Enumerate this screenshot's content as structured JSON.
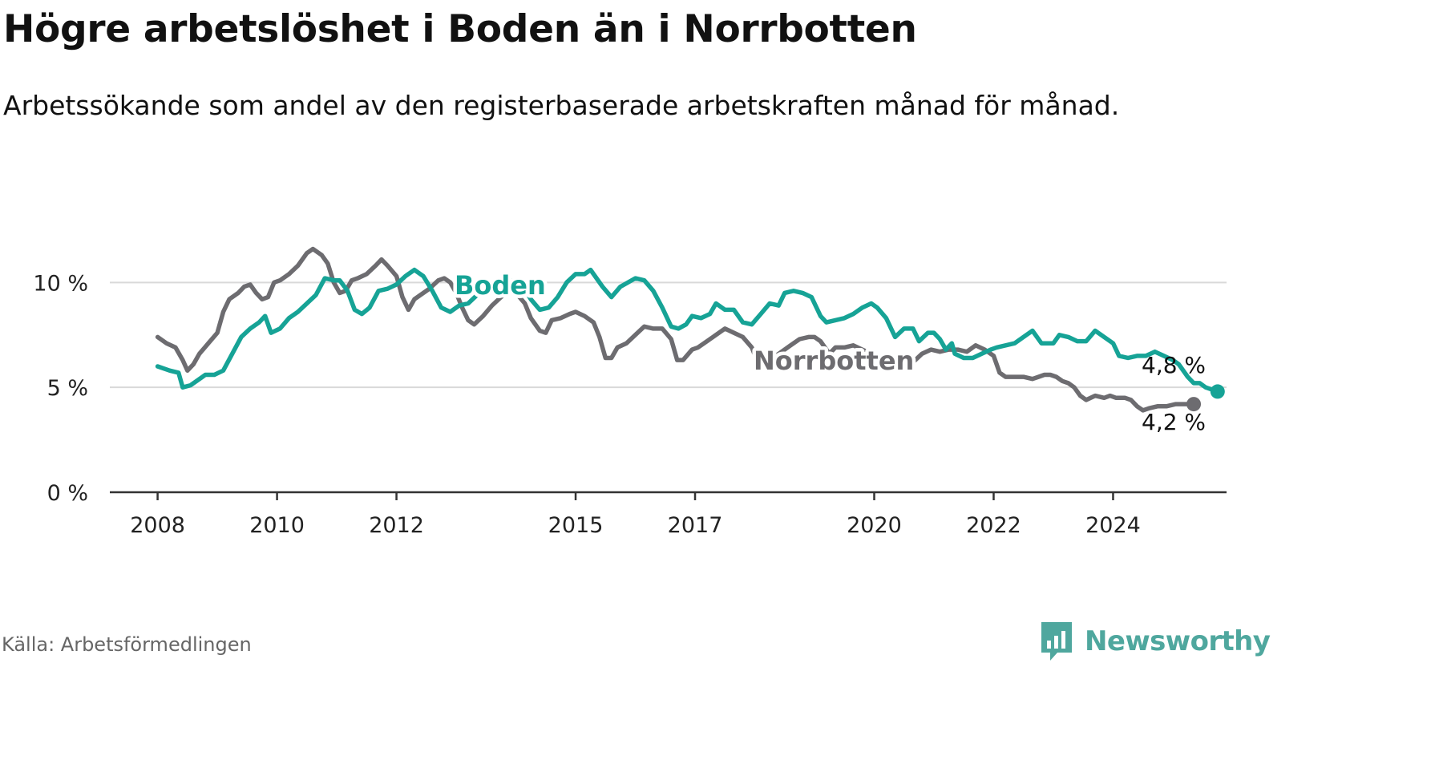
{
  "title": "Högre arbetslöshet i Boden än i Norrbotten",
  "subtitle": "Arbetssökande som andel av den registerbaserade arbetskraften månad för månad.",
  "source": "Källa: Arbetsförmedlingen",
  "brand": {
    "name": "Newsworthy",
    "icon": "newsworthy-logo-icon",
    "color": "#4fa79e"
  },
  "colors": {
    "boden": "#16a396",
    "norrbotten": "#6d6c70",
    "grid": "#d9d9d9",
    "axis": "#333333"
  },
  "chart_data": {
    "type": "line",
    "title": "Högre arbetslöshet i Boden än i Norrbotten",
    "xlabel": "",
    "ylabel": "",
    "ylim": [
      0,
      12
    ],
    "xlim": [
      2007.2,
      2025.9
    ],
    "y_ticks": [
      0,
      5,
      10
    ],
    "y_tick_labels": [
      "0 %",
      "5 %",
      "10 %"
    ],
    "x_ticks": [
      2008,
      2010,
      2012,
      2015,
      2017,
      2020,
      2022,
      2024
    ],
    "x_tick_labels": [
      "2008",
      "2010",
      "2012",
      "2015",
      "2017",
      "2020",
      "2022",
      "2024"
    ],
    "grid": true,
    "series": [
      {
        "name": "Boden",
        "label": "Boden",
        "color": "#16a396",
        "end_label": "4,8 %",
        "points": [
          [
            2008.0,
            6.0
          ],
          [
            2008.2,
            5.8
          ],
          [
            2008.35,
            5.7
          ],
          [
            2008.42,
            5.0
          ],
          [
            2008.55,
            5.1
          ],
          [
            2008.8,
            5.6
          ],
          [
            2008.95,
            5.6
          ],
          [
            2009.1,
            5.8
          ],
          [
            2009.25,
            6.6
          ],
          [
            2009.4,
            7.4
          ],
          [
            2009.55,
            7.8
          ],
          [
            2009.7,
            8.1
          ],
          [
            2009.8,
            8.4
          ],
          [
            2009.9,
            7.6
          ],
          [
            2010.05,
            7.8
          ],
          [
            2010.2,
            8.3
          ],
          [
            2010.35,
            8.6
          ],
          [
            2010.5,
            9.0
          ],
          [
            2010.65,
            9.4
          ],
          [
            2010.8,
            10.2
          ],
          [
            2010.95,
            10.1
          ],
          [
            2011.05,
            10.1
          ],
          [
            2011.18,
            9.6
          ],
          [
            2011.3,
            8.7
          ],
          [
            2011.42,
            8.5
          ],
          [
            2011.55,
            8.8
          ],
          [
            2011.7,
            9.6
          ],
          [
            2011.85,
            9.7
          ],
          [
            2012.0,
            9.9
          ],
          [
            2012.15,
            10.3
          ],
          [
            2012.3,
            10.6
          ],
          [
            2012.45,
            10.3
          ],
          [
            2012.6,
            9.6
          ],
          [
            2012.75,
            8.8
          ],
          [
            2012.9,
            8.6
          ],
          [
            2013.05,
            8.9
          ],
          [
            2013.2,
            9.0
          ],
          [
            2013.35,
            9.4
          ],
          [
            2013.5,
            9.6
          ],
          [
            2013.65,
            9.8
          ],
          [
            2013.8,
            10.0
          ],
          [
            2013.95,
            10.1
          ],
          [
            2014.1,
            9.9
          ],
          [
            2014.25,
            9.2
          ],
          [
            2014.4,
            8.7
          ],
          [
            2014.55,
            8.8
          ],
          [
            2014.7,
            9.3
          ],
          [
            2014.85,
            10.0
          ],
          [
            2015.0,
            10.4
          ],
          [
            2015.15,
            10.4
          ],
          [
            2015.25,
            10.6
          ],
          [
            2015.45,
            9.8
          ],
          [
            2015.6,
            9.3
          ],
          [
            2015.75,
            9.8
          ],
          [
            2016.0,
            10.2
          ],
          [
            2016.15,
            10.1
          ],
          [
            2016.3,
            9.6
          ],
          [
            2016.45,
            8.8
          ],
          [
            2016.6,
            7.9
          ],
          [
            2016.72,
            7.8
          ],
          [
            2016.85,
            8.0
          ],
          [
            2016.95,
            8.4
          ],
          [
            2017.1,
            8.3
          ],
          [
            2017.25,
            8.5
          ],
          [
            2017.35,
            9.0
          ],
          [
            2017.5,
            8.7
          ],
          [
            2017.65,
            8.7
          ],
          [
            2017.8,
            8.1
          ],
          [
            2017.95,
            8.0
          ],
          [
            2018.1,
            8.5
          ],
          [
            2018.25,
            9.0
          ],
          [
            2018.4,
            8.9
          ],
          [
            2018.5,
            9.5
          ],
          [
            2018.65,
            9.6
          ],
          [
            2018.8,
            9.5
          ],
          [
            2018.95,
            9.3
          ],
          [
            2019.1,
            8.4
          ],
          [
            2019.2,
            8.1
          ],
          [
            2019.35,
            8.2
          ],
          [
            2019.5,
            8.3
          ],
          [
            2019.65,
            8.5
          ],
          [
            2019.8,
            8.8
          ],
          [
            2019.95,
            9.0
          ],
          [
            2020.05,
            8.8
          ],
          [
            2020.2,
            8.3
          ],
          [
            2020.35,
            7.4
          ],
          [
            2020.5,
            7.8
          ],
          [
            2020.65,
            7.8
          ],
          [
            2020.75,
            7.2
          ],
          [
            2020.9,
            7.6
          ],
          [
            2021.0,
            7.6
          ],
          [
            2021.1,
            7.3
          ],
          [
            2021.2,
            6.8
          ],
          [
            2021.3,
            7.1
          ],
          [
            2021.35,
            6.6
          ],
          [
            2021.5,
            6.4
          ],
          [
            2021.65,
            6.4
          ],
          [
            2021.8,
            6.6
          ],
          [
            2021.95,
            6.8
          ],
          [
            2022.05,
            6.9
          ],
          [
            2022.2,
            7.0
          ],
          [
            2022.35,
            7.1
          ],
          [
            2022.5,
            7.4
          ],
          [
            2022.65,
            7.7
          ],
          [
            2022.8,
            7.1
          ],
          [
            2022.95,
            7.1
          ],
          [
            2023.0,
            7.1
          ],
          [
            2023.1,
            7.5
          ],
          [
            2023.25,
            7.4
          ],
          [
            2023.4,
            7.2
          ],
          [
            2023.55,
            7.2
          ],
          [
            2023.7,
            7.7
          ],
          [
            2023.85,
            7.4
          ],
          [
            2024.0,
            7.1
          ],
          [
            2024.1,
            6.5
          ],
          [
            2024.25,
            6.4
          ],
          [
            2024.4,
            6.5
          ],
          [
            2024.55,
            6.5
          ],
          [
            2024.7,
            6.7
          ],
          [
            2024.85,
            6.5
          ],
          [
            2025.0,
            6.3
          ],
          [
            2025.1,
            6.1
          ],
          [
            2025.25,
            5.5
          ],
          [
            2025.35,
            5.2
          ],
          [
            2025.45,
            5.2
          ],
          [
            2025.55,
            5.0
          ],
          [
            2025.65,
            4.9
          ],
          [
            2025.75,
            4.8
          ]
        ]
      },
      {
        "name": "Norrbotten",
        "label": "Norrbotten",
        "color": "#6d6c70",
        "end_label": "4,2 %",
        "points": [
          [
            2008.0,
            7.4
          ],
          [
            2008.15,
            7.1
          ],
          [
            2008.3,
            6.9
          ],
          [
            2008.42,
            6.3
          ],
          [
            2008.5,
            5.8
          ],
          [
            2008.6,
            6.1
          ],
          [
            2008.7,
            6.6
          ],
          [
            2008.85,
            7.1
          ],
          [
            2009.0,
            7.6
          ],
          [
            2009.1,
            8.6
          ],
          [
            2009.2,
            9.2
          ],
          [
            2009.35,
            9.5
          ],
          [
            2009.45,
            9.8
          ],
          [
            2009.55,
            9.9
          ],
          [
            2009.65,
            9.5
          ],
          [
            2009.75,
            9.2
          ],
          [
            2009.85,
            9.3
          ],
          [
            2009.95,
            10.0
          ],
          [
            2010.05,
            10.1
          ],
          [
            2010.2,
            10.4
          ],
          [
            2010.35,
            10.8
          ],
          [
            2010.5,
            11.4
          ],
          [
            2010.6,
            11.6
          ],
          [
            2010.75,
            11.3
          ],
          [
            2010.85,
            10.9
          ],
          [
            2010.95,
            10.0
          ],
          [
            2011.05,
            9.5
          ],
          [
            2011.15,
            9.6
          ],
          [
            2011.25,
            10.1
          ],
          [
            2011.35,
            10.2
          ],
          [
            2011.5,
            10.4
          ],
          [
            2011.65,
            10.8
          ],
          [
            2011.75,
            11.1
          ],
          [
            2011.85,
            10.8
          ],
          [
            2012.0,
            10.3
          ],
          [
            2012.1,
            9.3
          ],
          [
            2012.2,
            8.7
          ],
          [
            2012.3,
            9.2
          ],
          [
            2012.4,
            9.4
          ],
          [
            2012.55,
            9.7
          ],
          [
            2012.7,
            10.1
          ],
          [
            2012.8,
            10.2
          ],
          [
            2012.9,
            10.0
          ],
          [
            2013.0,
            9.5
          ],
          [
            2013.1,
            8.8
          ],
          [
            2013.2,
            8.2
          ],
          [
            2013.3,
            8.0
          ],
          [
            2013.45,
            8.4
          ],
          [
            2013.6,
            8.9
          ],
          [
            2013.75,
            9.3
          ],
          [
            2013.85,
            9.5
          ],
          [
            2014.0,
            9.5
          ],
          [
            2014.15,
            9.0
          ],
          [
            2014.25,
            8.3
          ],
          [
            2014.4,
            7.7
          ],
          [
            2014.5,
            7.6
          ],
          [
            2014.6,
            8.2
          ],
          [
            2014.75,
            8.3
          ],
          [
            2014.9,
            8.5
          ],
          [
            2015.0,
            8.6
          ],
          [
            2015.15,
            8.4
          ],
          [
            2015.3,
            8.1
          ],
          [
            2015.4,
            7.4
          ],
          [
            2015.5,
            6.4
          ],
          [
            2015.6,
            6.4
          ],
          [
            2015.7,
            6.9
          ],
          [
            2015.85,
            7.1
          ],
          [
            2016.0,
            7.5
          ],
          [
            2016.15,
            7.9
          ],
          [
            2016.3,
            7.8
          ],
          [
            2016.45,
            7.8
          ],
          [
            2016.6,
            7.3
          ],
          [
            2016.7,
            6.3
          ],
          [
            2016.8,
            6.3
          ],
          [
            2016.95,
            6.8
          ],
          [
            2017.05,
            6.9
          ],
          [
            2017.2,
            7.2
          ],
          [
            2017.35,
            7.5
          ],
          [
            2017.5,
            7.8
          ],
          [
            2017.65,
            7.6
          ],
          [
            2017.8,
            7.4
          ],
          [
            2017.95,
            6.9
          ],
          [
            2018.05,
            6.2
          ],
          [
            2018.15,
            6.1
          ],
          [
            2018.3,
            6.4
          ],
          [
            2018.45,
            6.7
          ],
          [
            2018.6,
            7.0
          ],
          [
            2018.75,
            7.3
          ],
          [
            2018.9,
            7.4
          ],
          [
            2019.0,
            7.4
          ],
          [
            2019.1,
            7.2
          ],
          [
            2019.25,
            6.6
          ],
          [
            2019.35,
            6.9
          ],
          [
            2019.5,
            6.9
          ],
          [
            2019.65,
            7.0
          ],
          [
            2019.8,
            6.8
          ],
          [
            2019.95,
            6.6
          ],
          [
            2020.05,
            6.4
          ],
          [
            2020.2,
            6.3
          ],
          [
            2020.35,
            6.2
          ],
          [
            2020.5,
            6.1
          ],
          [
            2020.65,
            6.2
          ],
          [
            2020.8,
            6.6
          ],
          [
            2020.95,
            6.8
          ],
          [
            2021.1,
            6.7
          ],
          [
            2021.25,
            6.8
          ],
          [
            2021.4,
            6.8
          ],
          [
            2021.55,
            6.7
          ],
          [
            2021.7,
            7.0
          ],
          [
            2021.85,
            6.8
          ],
          [
            2022.0,
            6.5
          ],
          [
            2022.1,
            5.7
          ],
          [
            2022.2,
            5.5
          ],
          [
            2022.35,
            5.5
          ],
          [
            2022.5,
            5.5
          ],
          [
            2022.65,
            5.4
          ],
          [
            2022.75,
            5.5
          ],
          [
            2022.85,
            5.6
          ],
          [
            2022.95,
            5.6
          ],
          [
            2023.05,
            5.5
          ],
          [
            2023.15,
            5.3
          ],
          [
            2023.25,
            5.2
          ],
          [
            2023.35,
            5.0
          ],
          [
            2023.45,
            4.6
          ],
          [
            2023.55,
            4.4
          ],
          [
            2023.7,
            4.6
          ],
          [
            2023.85,
            4.5
          ],
          [
            2023.95,
            4.6
          ],
          [
            2024.05,
            4.5
          ],
          [
            2024.2,
            4.5
          ],
          [
            2024.3,
            4.4
          ],
          [
            2024.4,
            4.1
          ],
          [
            2024.5,
            3.9
          ],
          [
            2024.6,
            4.0
          ],
          [
            2024.75,
            4.1
          ],
          [
            2024.9,
            4.1
          ],
          [
            2025.05,
            4.2
          ],
          [
            2025.2,
            4.2
          ],
          [
            2025.35,
            4.2
          ]
        ]
      }
    ]
  }
}
